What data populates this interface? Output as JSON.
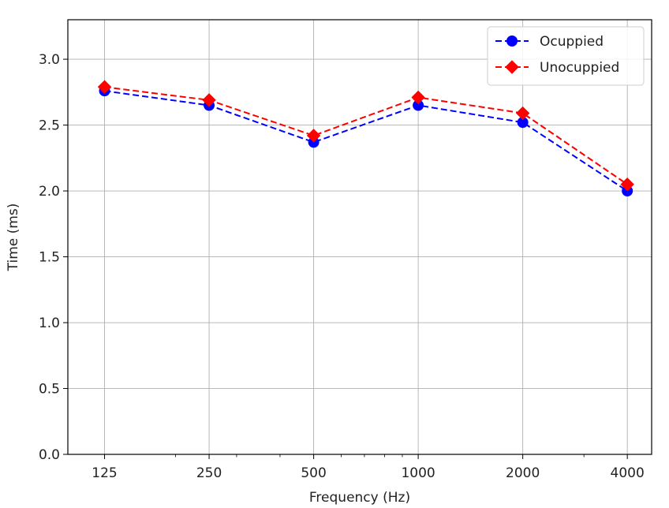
{
  "chart_data": {
    "type": "line",
    "title": "",
    "xlabel": "Frequency (Hz)",
    "ylabel": "Time (ms)",
    "x_scale": "log2",
    "categories": [
      "125",
      "250",
      "500",
      "1000",
      "2000",
      "4000"
    ],
    "x": [
      125,
      250,
      500,
      1000,
      2000,
      4000
    ],
    "ylim": [
      0,
      3.3
    ],
    "xlim": [
      98,
      4700
    ],
    "yticks": [
      "0.0",
      "0.5",
      "1.0",
      "1.5",
      "2.0",
      "2.5",
      "3.0"
    ],
    "grid": true,
    "legend_position": "top-right",
    "series": [
      {
        "name": "Ocuppied",
        "color": "#0000ff",
        "marker": "circle",
        "line_style": "dashed",
        "values": [
          2.76,
          2.65,
          2.37,
          2.65,
          2.52,
          2.0
        ]
      },
      {
        "name": "Unocuppied",
        "color": "#ff0000",
        "marker": "diamond",
        "line_style": "dashed",
        "values": [
          2.79,
          2.69,
          2.42,
          2.71,
          2.59,
          2.05
        ]
      }
    ]
  }
}
